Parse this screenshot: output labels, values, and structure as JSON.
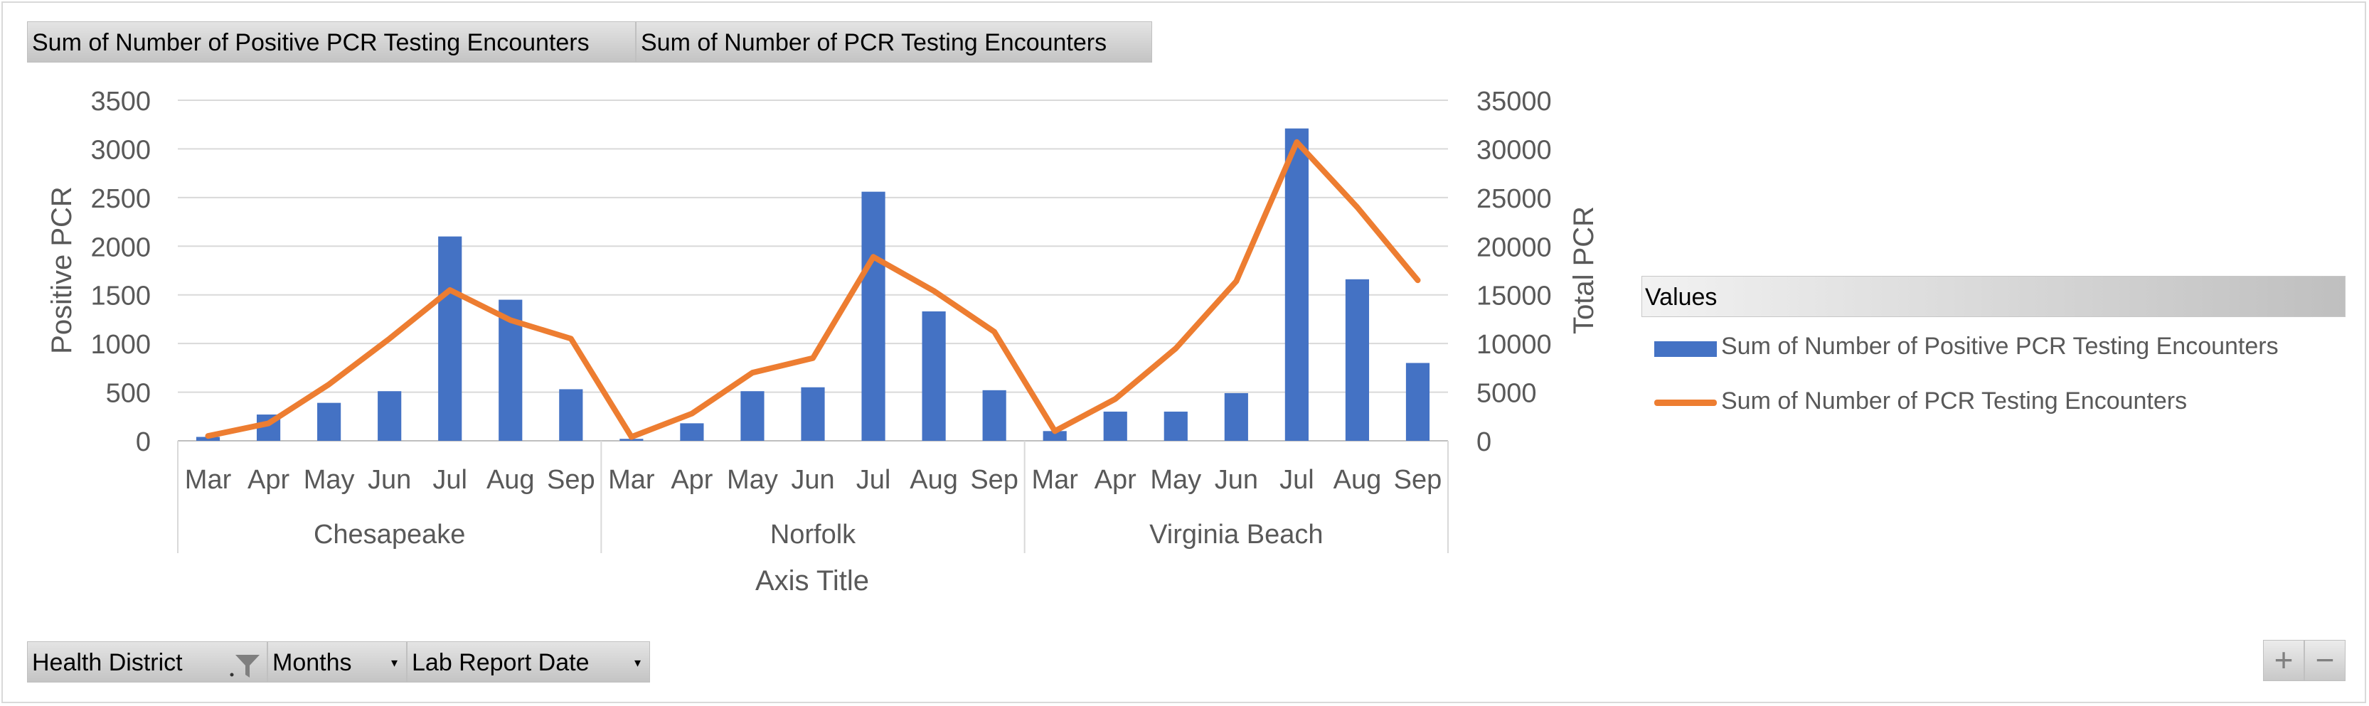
{
  "value_buttons": {
    "positive": "Sum of Number of Positive PCR Testing Encounters",
    "total": "Sum of Number of PCR Testing Encounters"
  },
  "filter_buttons": {
    "health_district": "Health District",
    "months": "Months",
    "lab_report_date": "Lab Report Date"
  },
  "legend": {
    "title": "Values",
    "positive": "Sum of Number of Positive PCR Testing Encounters",
    "total": "Sum of Number of PCR Testing Encounters"
  },
  "zoom": {
    "plus": "+",
    "minus": "−"
  },
  "colors": {
    "bar": "#4472c4",
    "line": "#ed7d31",
    "grid": "#d9d9d9",
    "text": "#595959"
  },
  "chart_data": {
    "type": "bar",
    "combo": "bar + line (secondary axis)",
    "groups": [
      {
        "name": "Chesapeake",
        "categories": [
          "Mar",
          "Apr",
          "May",
          "Jun",
          "Jul",
          "Aug",
          "Sep"
        ]
      },
      {
        "name": "Norfolk",
        "categories": [
          "Mar",
          "Apr",
          "May",
          "Jun",
          "Jul",
          "Aug",
          "Sep"
        ]
      },
      {
        "name": "Virginia Beach",
        "categories": [
          "Mar",
          "Apr",
          "May",
          "Jun",
          "Jul",
          "Aug",
          "Sep"
        ]
      }
    ],
    "series": [
      {
        "name": "Sum of Number of Positive PCR Testing Encounters",
        "type": "bar",
        "axis": "left",
        "values": [
          40,
          270,
          390,
          510,
          2100,
          1450,
          530,
          20,
          180,
          510,
          550,
          2560,
          1330,
          520,
          100,
          300,
          300,
          490,
          3210,
          1660,
          800
        ]
      },
      {
        "name": "Sum of Number of PCR Testing Encounters",
        "type": "line",
        "axis": "right",
        "values": [
          500,
          1800,
          5800,
          10500,
          15500,
          12400,
          10500,
          400,
          2800,
          7000,
          8500,
          18900,
          15400,
          11200,
          1000,
          4300,
          9500,
          16400,
          30700,
          24000,
          16500
        ]
      }
    ],
    "ylabel": "Positive PCR",
    "y2label": "Total PCR",
    "xlabel": "Axis Title",
    "ylim": [
      0,
      3500
    ],
    "yticks": [
      "0",
      "500",
      "1000",
      "1500",
      "2000",
      "2500",
      "3000",
      "3500"
    ],
    "y2lim": [
      0,
      35000
    ],
    "y2ticks": [
      "0",
      "5000",
      "10000",
      "15000",
      "20000",
      "25000",
      "30000",
      "35000"
    ],
    "grid": true,
    "legend_position": "right"
  }
}
